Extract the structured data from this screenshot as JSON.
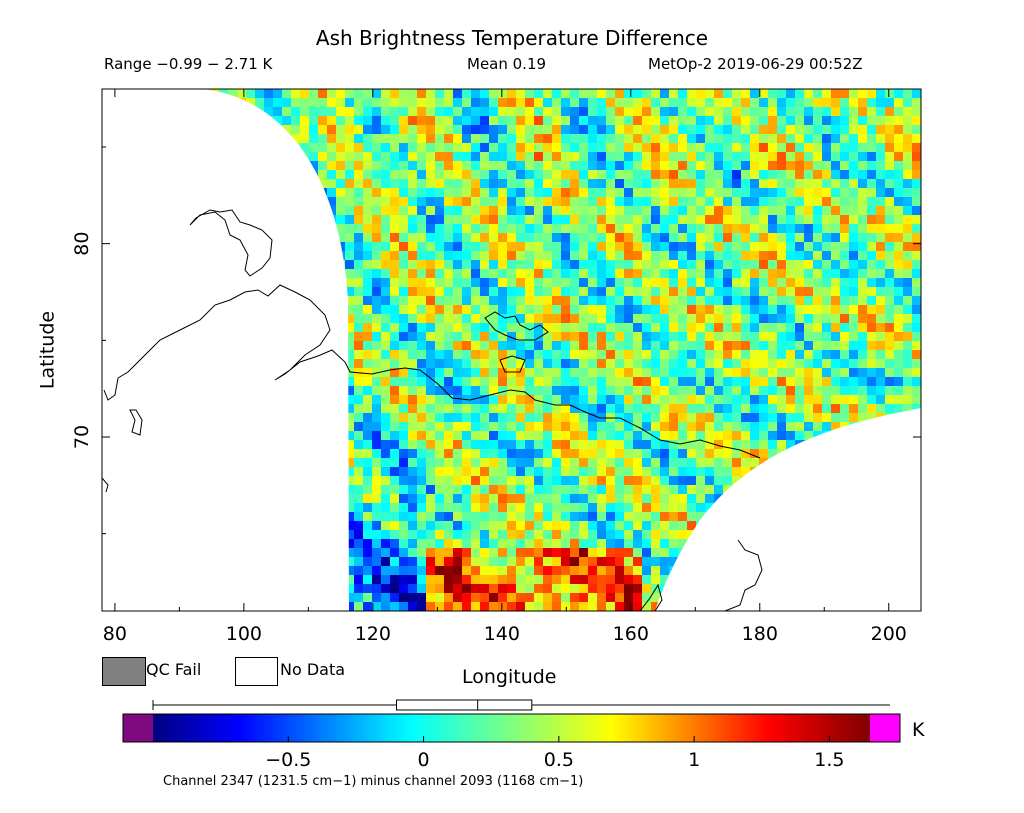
{
  "header": {
    "title": "Ash Brightness Temperature Difference",
    "range": "Range −0.99 − 2.71 K",
    "mean": "Mean 0.19",
    "satellite_time": "MetOp-2 2019-06-29 00:52Z"
  },
  "legend": {
    "qc_fail": "QC Fail",
    "no_data": "No Data",
    "qc_fail_color": "#808080",
    "no_data_color": "#ffffff"
  },
  "colorbar": {
    "unit": "K",
    "caption": "Channel 2347 (1231.5 cm−1) minus channel 2093 (1168 cm−1)",
    "min": -1.0,
    "max": 1.65,
    "ticks": [
      {
        "value": -0.5,
        "label": "−0.5"
      },
      {
        "value": 0,
        "label": "0"
      },
      {
        "value": 0.5,
        "label": "0.5"
      },
      {
        "value": 1,
        "label": "1"
      },
      {
        "value": 1.5,
        "label": "1.5"
      }
    ],
    "underflow_color": "#7f0a7f",
    "overflow_color": "#ff00ff",
    "boxplot": {
      "whisker_low": -1.0,
      "q1": -0.1,
      "median": 0.2,
      "q3": 0.4,
      "whisker_high": 1.65
    }
  },
  "chart_data": {
    "type": "heatmap",
    "title": "Ash Brightness Temperature Difference",
    "xlabel": "Longitude",
    "ylabel": "Latitude",
    "xlim": [
      78,
      205
    ],
    "ylim": [
      61,
      88
    ],
    "xticks": [
      80,
      100,
      120,
      140,
      160,
      180,
      200
    ],
    "yticks": [
      70,
      80
    ],
    "value_range": [
      -0.99,
      2.71
    ],
    "mean": 0.19,
    "units": "K"
  }
}
